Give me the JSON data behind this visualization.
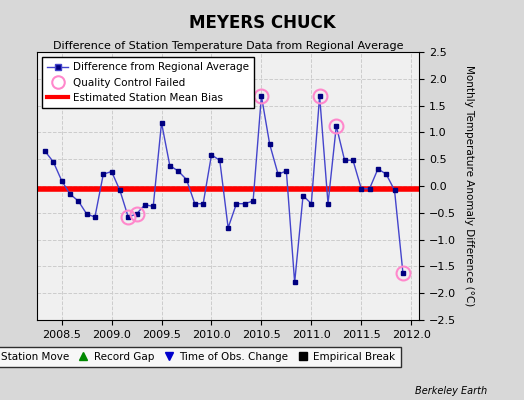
{
  "title": "MEYERS CHUCK",
  "subtitle": "Difference of Station Temperature Data from Regional Average",
  "ylabel": "Monthly Temperature Anomaly Difference (°C)",
  "xlabel_ticks": [
    2008.5,
    2009,
    2009.5,
    2010,
    2010.5,
    2011,
    2011.5,
    2012
  ],
  "xlim": [
    2008.25,
    2012.08
  ],
  "ylim": [
    -2.5,
    2.5
  ],
  "yticks": [
    -2.5,
    -2,
    -1.5,
    -1,
    -0.5,
    0,
    0.5,
    1,
    1.5,
    2,
    2.5
  ],
  "bias_line_y": -0.05,
  "bias_line_slope": 0.0,
  "line_color": "#4444cc",
  "marker_color": "#000080",
  "bias_color": "#ff0000",
  "qc_color": "#ff88cc",
  "plot_bg": "#f0f0f0",
  "fig_bg": "#d8d8d8",
  "gridcolor": "#cccccc",
  "x_data": [
    2008.333,
    2008.417,
    2008.5,
    2008.583,
    2008.667,
    2008.75,
    2008.833,
    2008.917,
    2009.0,
    2009.083,
    2009.167,
    2009.25,
    2009.333,
    2009.417,
    2009.5,
    2009.583,
    2009.667,
    2009.75,
    2009.833,
    2009.917,
    2010.0,
    2010.083,
    2010.167,
    2010.25,
    2010.333,
    2010.417,
    2010.5,
    2010.583,
    2010.667,
    2010.75,
    2010.833,
    2010.917,
    2011.0,
    2011.083,
    2011.167,
    2011.25,
    2011.333,
    2011.417,
    2011.5,
    2011.583,
    2011.667,
    2011.75,
    2011.833,
    2011.917
  ],
  "y_data": [
    0.65,
    0.45,
    0.1,
    -0.15,
    -0.28,
    -0.52,
    -0.58,
    0.22,
    0.27,
    -0.08,
    -0.58,
    -0.52,
    -0.35,
    -0.38,
    1.18,
    0.38,
    0.28,
    0.12,
    -0.33,
    -0.33,
    0.58,
    0.48,
    -0.78,
    -0.33,
    -0.33,
    -0.28,
    1.68,
    0.78,
    0.22,
    0.28,
    -1.8,
    -0.18,
    -0.33,
    1.68,
    -0.33,
    1.12,
    0.48,
    0.48,
    -0.05,
    -0.05,
    0.32,
    0.22,
    -0.08,
    -1.62
  ],
  "qc_failed_indices": [
    10,
    11,
    26,
    33,
    35,
    43
  ],
  "watermark": "Berkeley Earth",
  "legend_bottom": [
    {
      "label": "Station Move",
      "color": "#cc0000",
      "marker": "D"
    },
    {
      "label": "Record Gap",
      "color": "#008800",
      "marker": "^"
    },
    {
      "label": "Time of Obs. Change",
      "color": "#0000cc",
      "marker": "v"
    },
    {
      "label": "Empirical Break",
      "color": "#000000",
      "marker": "s"
    }
  ]
}
